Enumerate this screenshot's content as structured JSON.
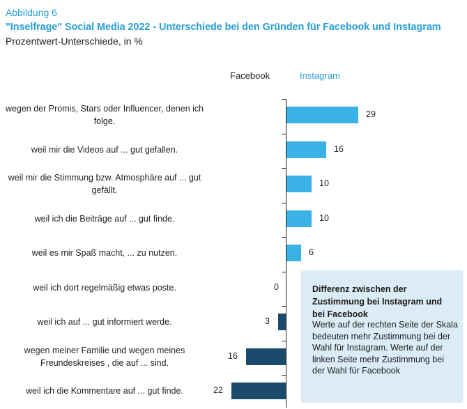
{
  "header": {
    "label": "Abbildung 6",
    "title": "\"Inselfrage\" Social Media 2022 - Unterschiede bei den Gründen für Facebook und Instagram",
    "subtitle": "Prozentwert-Unterschiede, in %"
  },
  "legend": {
    "facebook": "Facebook",
    "instagram": "Instagram"
  },
  "colors": {
    "instagram": "#3ab2e6",
    "facebook": "#1b4a6c",
    "accent": "#2a9fd6",
    "infobox": "#dcecf7"
  },
  "infobox": {
    "title": "Differenz zwischen der Zustimmung bei Instagram und bei Facebook",
    "text": "Werte auf der rechten Seite der Skala bedeuten mehr Zustimmung bei der Wahl für Instagram. Werte auf der linken Seite mehr Zustimmung bei der Wahl für Facebook"
  },
  "chart_data": {
    "type": "bar",
    "orientation": "horizontal",
    "title": "\"Inselfrage\" Social Media 2022 - Unterschiede bei den Gründen für Facebook und Instagram",
    "xlabel": "Prozentwert-Unterschiede, in %",
    "categories": [
      "wegen der Promis, Stars oder Influencer, denen ich folge.",
      "weil mir die Videos auf ... gut gefallen.",
      "weil mir die Stimmung bzw. Atmosphäre auf ... gut gefällt.",
      "weil ich die Beiträge auf ... gut finde.",
      "weil es mir Spaß macht, ... zu nutzen.",
      "weil ich dort regelmäßig etwas poste.",
      "weil ich auf ... gut informiert werde.",
      "wegen meiner Familie und wegen meines Freundeskreises , die auf ... sind.",
      "weil ich die Kommentare auf ... gut finde."
    ],
    "series": [
      {
        "name": "Differenz Instagram - Facebook",
        "values": [
          29,
          16,
          10,
          10,
          6,
          0,
          -3,
          -16,
          -22
        ]
      }
    ],
    "labels": [
      "29",
      "16",
      "10",
      "10",
      "6",
      "0",
      "3",
      "16",
      "22"
    ],
    "positive_side": "Instagram",
    "negative_side": "Facebook"
  }
}
